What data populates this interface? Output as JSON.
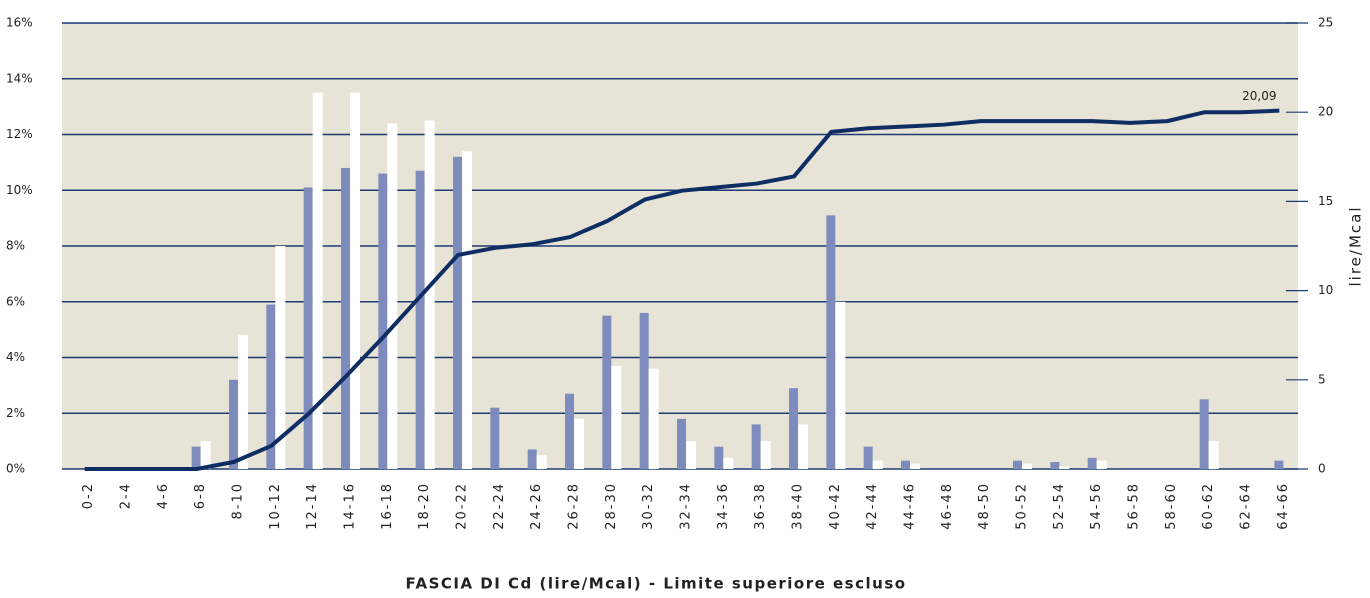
{
  "chart_data": {
    "type": "bar_line",
    "xlabel": "FASCIA DI Cd (lire/Mcal) - Limite superiore escluso",
    "y2label": "lire/Mcal",
    "categories": [
      "0-2",
      "2-4",
      "4-6",
      "6-8",
      "8-10",
      "10-12",
      "12-14",
      "14-16",
      "16-18",
      "18-20",
      "20-22",
      "22-24",
      "24-26",
      "26-28",
      "28-30",
      "30-32",
      "32-34",
      "34-36",
      "36-38",
      "38-40",
      "40-42",
      "42-44",
      "44-46",
      "46-48",
      "48-50",
      "50-52",
      "52-54",
      "54-56",
      "56-58",
      "58-60",
      "60-62",
      "62-64",
      "64-66"
    ],
    "series": [
      {
        "type": "bar",
        "color": "#7e8cbd",
        "values": [
          0,
          0,
          0,
          0.8,
          3.2,
          5.9,
          10.1,
          10.8,
          10.6,
          10.7,
          11.2,
          2.2,
          0.7,
          2.7,
          5.5,
          5.6,
          1.8,
          0.8,
          1.6,
          2.9,
          9.1,
          0.8,
          0.3,
          0,
          0,
          0.3,
          0.25,
          0.4,
          0,
          0,
          2.5,
          0,
          0.3
        ]
      },
      {
        "type": "bar",
        "color": "#ffffff",
        "values": [
          0,
          0,
          0,
          1.0,
          4.8,
          8.0,
          13.5,
          13.5,
          12.4,
          12.5,
          11.4,
          0,
          0.5,
          1.8,
          3.7,
          3.6,
          1.0,
          0.4,
          1.0,
          1.6,
          6.0,
          0.3,
          0.2,
          0,
          0,
          0.2,
          0.1,
          0.3,
          0,
          0,
          1.0,
          0,
          0
        ]
      },
      {
        "type": "line",
        "axis": "y2",
        "color": "#0d2d63",
        "values": [
          0,
          0,
          0,
          0,
          0.4,
          1.3,
          3.1,
          5.2,
          7.4,
          9.7,
          12.0,
          12.4,
          12.6,
          13.0,
          13.9,
          15.1,
          15.6,
          15.8,
          16.0,
          16.4,
          18.9,
          19.1,
          19.2,
          19.3,
          19.5,
          19.5,
          19.5,
          19.5,
          19.4,
          19.5,
          20.0,
          20.0,
          20.09
        ],
        "value_labels": [
          null,
          null,
          null,
          null,
          null,
          null,
          null,
          null,
          null,
          null,
          null,
          null,
          null,
          null,
          null,
          null,
          null,
          null,
          null,
          null,
          null,
          null,
          null,
          null,
          null,
          null,
          null,
          null,
          null,
          null,
          null,
          null,
          "20,09"
        ]
      }
    ],
    "ylim": [
      0,
      16
    ],
    "yticks": [
      {
        "value": 0,
        "label": "0%"
      },
      {
        "value": 2,
        "label": "2%"
      },
      {
        "value": 4,
        "label": "4%"
      },
      {
        "value": 6,
        "label": "6%"
      },
      {
        "value": 8,
        "label": "8%"
      },
      {
        "value": 10,
        "label": "10%"
      },
      {
        "value": 12,
        "label": "12%"
      },
      {
        "value": 14,
        "label": "14%"
      },
      {
        "value": 16,
        "label": "16%"
      }
    ],
    "y2lim": [
      0,
      25
    ],
    "y2ticks": [
      0,
      5,
      10,
      15,
      20,
      25
    ],
    "grid": true
  }
}
